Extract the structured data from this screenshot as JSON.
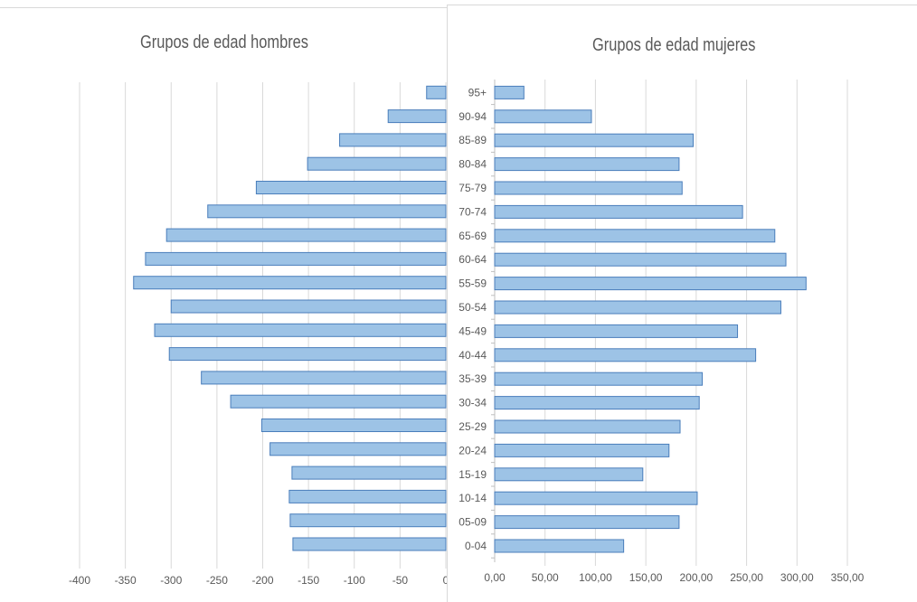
{
  "chart_data": [
    {
      "type": "bar",
      "orientation": "horizontal",
      "title": "Grupos de edad hombres",
      "categories": [
        "0-04",
        "05-09",
        "10-14",
        "15-19",
        "20-24",
        "25-29",
        "30-34",
        "35-39",
        "40-44",
        "45-49",
        "50-54",
        "55-59",
        "60-64",
        "65-69",
        "70-74",
        "75-79",
        "80-84",
        "85-89",
        "90-94",
        "95+"
      ],
      "values": [
        -167,
        -170,
        -171,
        -168,
        -192,
        -201,
        -235,
        -267,
        -302,
        -318,
        -300,
        -341,
        -328,
        -305,
        -260,
        -207,
        -151,
        -116,
        -63,
        -21
      ],
      "xlim": [
        -400,
        0
      ],
      "x_ticks": [
        "-400",
        "-350",
        "-300",
        "-250",
        "-200",
        "-150",
        "-100",
        "-50",
        "0"
      ],
      "x_tick_values": [
        -400,
        -350,
        -300,
        -250,
        -200,
        -150,
        -100,
        -50,
        0
      ],
      "grid": "vertical",
      "bar_color": "#9dc3e6",
      "bar_border": "#4a7ebb"
    },
    {
      "type": "bar",
      "orientation": "horizontal",
      "title": "Grupos de edad mujeres",
      "categories": [
        "0-04",
        "05-09",
        "10-14",
        "15-19",
        "20-24",
        "25-29",
        "30-34",
        "35-39",
        "40-44",
        "45-49",
        "50-54",
        "55-59",
        "60-64",
        "65-69",
        "70-74",
        "75-79",
        "80-84",
        "85-89",
        "90-94",
        "95+"
      ],
      "values": [
        128,
        183,
        201,
        147,
        173,
        184,
        203,
        206,
        259,
        241,
        284,
        309,
        289,
        278,
        246,
        186,
        183,
        197,
        96,
        29
      ],
      "xlim": [
        0,
        350
      ],
      "x_ticks": [
        "0,00",
        "50,00",
        "100,00",
        "150,00",
        "200,00",
        "250,00",
        "300,00",
        "350,00"
      ],
      "x_tick_values": [
        0,
        50,
        100,
        150,
        200,
        250,
        300,
        350
      ],
      "grid": "vertical",
      "bar_color": "#9dc3e6",
      "bar_border": "#4a7ebb"
    }
  ]
}
